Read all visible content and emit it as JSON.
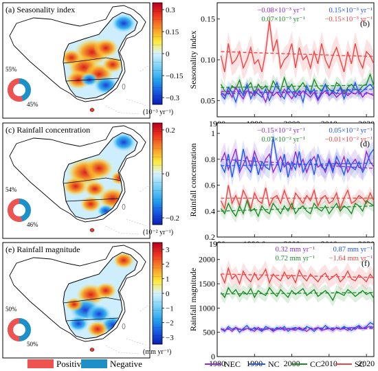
{
  "colors": {
    "NEC": "#8b2bd0",
    "NC": "#2255ee",
    "CC": "#1f8a2a",
    "SC": "#ee4444",
    "positive": "#ef5350",
    "negative": "#1e90c8"
  },
  "maps": [
    {
      "title": "(a) Seasonality index",
      "colorbar_ticks": [
        "0.3",
        "0.15",
        "0",
        "−0.15",
        "−0.3"
      ],
      "unit": "(10⁻³ yr⁻¹)",
      "donut": {
        "positive_pct": 55,
        "negative_pct": 45,
        "positive_label": "55%",
        "negative_label": "45%"
      }
    },
    {
      "title": "(c) Rainfall concentration",
      "colorbar_ticks": [
        "0.2",
        "0",
        "−0.2"
      ],
      "unit": "(10⁻² yr⁻¹)",
      "donut": {
        "positive_pct": 54,
        "negative_pct": 46,
        "positive_label": "54%",
        "negative_label": "46%"
      }
    },
    {
      "title": "(e) Rainfall magnitude",
      "colorbar_ticks": [
        "3",
        "2",
        "1",
        "0",
        "−1",
        "−2",
        "−3"
      ],
      "unit": "(mm yr⁻¹)",
      "donut": {
        "positive_pct": 50,
        "negative_pct": 50,
        "positive_label": "50%",
        "negative_label": "50%"
      }
    }
  ],
  "legend_map": {
    "positive": "Positive",
    "negative": "Negative"
  },
  "legend_lines": [
    "NEC",
    "NC",
    "CC",
    "SC"
  ],
  "chart_data": [
    {
      "type": "line",
      "panel": "(b)",
      "ylabel": "Seasonality index",
      "xlim": [
        1980,
        2022
      ],
      "ylim": [
        0.03,
        0.17
      ],
      "x_ticks": [
        "1980",
        "1990",
        "2000",
        "2010",
        "2020"
      ],
      "y_ticks": [
        "0.05",
        "0.10",
        "0.15"
      ],
      "trend_labels": [
        {
          "text": "−0.08×10⁻³ yr⁻¹",
          "color": "NEC"
        },
        {
          "text": "0.15×10⁻³ yr⁻¹",
          "color": "NC"
        },
        {
          "text": "0.07×10⁻³ yr⁻¹",
          "color": "CC"
        },
        {
          "text": "−0.15×10⁻³ yr⁻¹",
          "color": "SC"
        }
      ],
      "x": [
        1981,
        1982,
        1983,
        1984,
        1985,
        1986,
        1987,
        1988,
        1989,
        1990,
        1991,
        1992,
        1993,
        1994,
        1995,
        1996,
        1997,
        1998,
        1999,
        2000,
        2001,
        2002,
        2003,
        2004,
        2005,
        2006,
        2007,
        2008,
        2009,
        2010,
        2011,
        2012,
        2013,
        2014,
        2015,
        2016,
        2017,
        2018,
        2019,
        2020,
        2021,
        2022
      ],
      "series": [
        {
          "name": "SC",
          "values": [
            0.105,
            0.085,
            0.12,
            0.095,
            0.1,
            0.11,
            0.09,
            0.1,
            0.115,
            0.095,
            0.1,
            0.085,
            0.11,
            0.148,
            0.11,
            0.125,
            0.09,
            0.1,
            0.105,
            0.12,
            0.09,
            0.115,
            0.1,
            0.105,
            0.09,
            0.11,
            0.095,
            0.12,
            0.1,
            0.09,
            0.105,
            0.115,
            0.1,
            0.085,
            0.11,
            0.095,
            0.12,
            0.1,
            0.09,
            0.11,
            0.105,
            0.095
          ],
          "trend": [
            0.11,
            0.104
          ],
          "band": 0.015
        },
        {
          "name": "CC",
          "values": [
            0.07,
            0.062,
            0.058,
            0.068,
            0.064,
            0.075,
            0.06,
            0.066,
            0.072,
            0.058,
            0.07,
            0.064,
            0.068,
            0.06,
            0.074,
            0.066,
            0.062,
            0.078,
            0.064,
            0.07,
            0.06,
            0.066,
            0.072,
            0.064,
            0.06,
            0.076,
            0.066,
            0.062,
            0.07,
            0.064,
            0.06,
            0.072,
            0.068,
            0.058,
            0.066,
            0.07,
            0.064,
            0.062,
            0.068,
            0.07,
            0.082,
            0.068
          ],
          "trend": [
            0.066,
            0.069
          ],
          "band": 0.008
        },
        {
          "name": "NC",
          "values": [
            0.058,
            0.052,
            0.066,
            0.06,
            0.048,
            0.064,
            0.056,
            0.07,
            0.052,
            0.062,
            0.058,
            0.054,
            0.064,
            0.05,
            0.06,
            0.072,
            0.058,
            0.052,
            0.066,
            0.06,
            0.054,
            0.062,
            0.048,
            0.068,
            0.058,
            0.064,
            0.052,
            0.06,
            0.07,
            0.056,
            0.062,
            0.058,
            0.066,
            0.052,
            0.064,
            0.06,
            0.072,
            0.058,
            0.062,
            0.066,
            0.07,
            0.064
          ],
          "trend": [
            0.058,
            0.064
          ],
          "band": 0.008
        },
        {
          "name": "NEC",
          "values": [
            0.06,
            0.056,
            0.062,
            0.054,
            0.066,
            0.058,
            0.052,
            0.062,
            0.06,
            0.056,
            0.064,
            0.058,
            0.048,
            0.062,
            0.056,
            0.06,
            0.054,
            0.064,
            0.058,
            0.052,
            0.06,
            0.056,
            0.062,
            0.058,
            0.054,
            0.06,
            0.05,
            0.058,
            0.062,
            0.056,
            0.06,
            0.054,
            0.058,
            0.062,
            0.056,
            0.06,
            0.058,
            0.062,
            0.054,
            0.06,
            0.058,
            0.056
          ],
          "trend": [
            0.061,
            0.058
          ],
          "band": 0.006
        }
      ]
    },
    {
      "type": "line",
      "panel": "(d)",
      "ylabel": "Rainfall concentration",
      "xlim": [
        1980,
        2022
      ],
      "ylim": [
        0.2,
        1.08
      ],
      "x_ticks": [
        "1980",
        "1990.0",
        "2000",
        "2010",
        "2020"
      ],
      "y_ticks": [
        "0.2",
        "0.4",
        "0.6",
        "0.8",
        "1"
      ],
      "trend_labels": [
        {
          "text": "−0.15×10⁻² yr⁻¹",
          "color": "NEC"
        },
        {
          "text": "0.05×10⁻² yr⁻¹",
          "color": "NC"
        },
        {
          "text": "0.07×10⁻² yr⁻¹",
          "color": "CC"
        },
        {
          "text": "−0.01×10⁻² yr⁻¹",
          "color": "SC"
        }
      ],
      "x": [
        1981,
        1982,
        1983,
        1984,
        1985,
        1986,
        1987,
        1988,
        1989,
        1990,
        1991,
        1992,
        1993,
        1994,
        1995,
        1996,
        1997,
        1998,
        1999,
        2000,
        2001,
        2002,
        2003,
        2004,
        2005,
        2006,
        2007,
        2008,
        2009,
        2010,
        2011,
        2012,
        2013,
        2014,
        2015,
        2016,
        2017,
        2018,
        2019,
        2020,
        2021,
        2022
      ],
      "series": [
        {
          "name": "NEC",
          "values": [
            0.78,
            0.85,
            0.72,
            0.8,
            0.88,
            0.7,
            0.76,
            0.82,
            0.74,
            0.86,
            0.78,
            0.72,
            0.8,
            0.84,
            0.7,
            0.76,
            0.82,
            0.74,
            0.78,
            0.72,
            0.86,
            0.74,
            0.8,
            0.7,
            0.78,
            0.82,
            0.74,
            0.76,
            0.7,
            0.8,
            0.72,
            0.78,
            0.74,
            0.82,
            0.7,
            0.76,
            0.8,
            0.74,
            0.72,
            0.86,
            0.78,
            0.74
          ],
          "trend": [
            0.8,
            0.73
          ],
          "band": 0.08
        },
        {
          "name": "NC",
          "values": [
            0.76,
            0.7,
            0.84,
            0.66,
            0.8,
            0.72,
            0.88,
            0.74,
            0.7,
            0.82,
            0.68,
            0.78,
            0.74,
            0.72,
            0.97,
            0.8,
            0.7,
            0.84,
            0.66,
            0.78,
            0.72,
            0.86,
            0.7,
            0.76,
            0.8,
            0.68,
            0.84,
            0.74,
            0.72,
            0.78,
            0.7,
            0.82,
            0.76,
            0.68,
            0.8,
            0.74,
            0.72,
            0.78,
            0.7,
            0.76,
            0.84,
            0.88
          ],
          "trend": [
            0.75,
            0.77
          ],
          "band": 0.07
        },
        {
          "name": "SC",
          "values": [
            0.48,
            0.42,
            0.6,
            0.46,
            0.52,
            0.44,
            0.56,
            0.5,
            0.42,
            0.54,
            0.48,
            0.46,
            0.58,
            0.44,
            0.5,
            0.52,
            0.46,
            0.56,
            0.48,
            0.42,
            0.54,
            0.5,
            0.46,
            0.52,
            0.48,
            0.56,
            0.44,
            0.5,
            0.52,
            0.46,
            0.48,
            0.54,
            0.42,
            0.5,
            0.56,
            0.46,
            0.48,
            0.52,
            0.5,
            0.46,
            0.54,
            0.48
          ],
          "trend": [
            0.5,
            0.5
          ],
          "band": 0.05
        },
        {
          "name": "CC",
          "values": [
            0.42,
            0.38,
            0.46,
            0.4,
            0.36,
            0.44,
            0.38,
            0.48,
            0.4,
            0.42,
            0.36,
            0.44,
            0.4,
            0.38,
            0.46,
            0.42,
            0.38,
            0.44,
            0.4,
            0.46,
            0.38,
            0.42,
            0.44,
            0.4,
            0.38,
            0.46,
            0.42,
            0.4,
            0.44,
            0.38,
            0.42,
            0.46,
            0.4,
            0.44,
            0.42,
            0.38,
            0.46,
            0.44,
            0.4,
            0.48,
            0.46,
            0.44
          ],
          "trend": [
            0.4,
            0.44
          ],
          "band": 0.05
        }
      ]
    },
    {
      "type": "line",
      "panel": "(f)",
      "ylabel": "Rainfall magnitude",
      "xlim": [
        1980,
        2022
      ],
      "ylim": [
        0,
        2350
      ],
      "x_ticks": [
        "1980",
        "1990",
        "2000",
        "2010",
        "2020"
      ],
      "y_ticks": [
        "0",
        "500",
        "1000",
        "1500",
        "2000"
      ],
      "trend_labels": [
        {
          "text": "0.32 mm yr⁻¹",
          "color": "NEC"
        },
        {
          "text": "0.87 mm yr⁻¹",
          "color": "NC"
        },
        {
          "text": "0.72 mm yr⁻¹",
          "color": "CC"
        },
        {
          "text": "−1.64 mm yr⁻¹",
          "color": "SC"
        }
      ],
      "x": [
        1981,
        1982,
        1983,
        1984,
        1985,
        1986,
        1987,
        1988,
        1989,
        1990,
        1991,
        1992,
        1993,
        1994,
        1995,
        1996,
        1997,
        1998,
        1999,
        2000,
        2001,
        2002,
        2003,
        2004,
        2005,
        2006,
        2007,
        2008,
        2009,
        2010,
        2011,
        2012,
        2013,
        2014,
        2015,
        2016,
        2017,
        2018,
        2019,
        2020,
        2021,
        2022
      ],
      "series": [
        {
          "name": "SC",
          "values": [
            1700,
            1520,
            1820,
            1600,
            1680,
            1500,
            1760,
            1620,
            1540,
            1720,
            1580,
            1660,
            1800,
            1520,
            1700,
            1620,
            1560,
            1740,
            1600,
            1680,
            1520,
            1780,
            1640,
            1560,
            1700,
            1620,
            1540,
            1660,
            1720,
            1580,
            1640,
            1700,
            1540,
            1620,
            1760,
            1600,
            1560,
            1680,
            1620,
            1540,
            1700,
            1600
          ],
          "trend": [
            1700,
            1630
          ],
          "band": 180
        },
        {
          "name": "CC",
          "values": [
            1320,
            1220,
            1420,
            1300,
            1380,
            1240,
            1340,
            1280,
            1400,
            1220,
            1360,
            1300,
            1260,
            1420,
            1320,
            1240,
            1380,
            1300,
            1220,
            1360,
            1280,
            1340,
            1400,
            1260,
            1320,
            1380,
            1240,
            1300,
            1360,
            1280,
            1160,
            1340,
            1300,
            1260,
            1380,
            1320,
            1240,
            1300,
            1360,
            1280,
            1320,
            1200
          ],
          "trend": [
            1290,
            1320
          ],
          "band": 130
        },
        {
          "name": "NC",
          "values": [
            580,
            520,
            620,
            560,
            600,
            500,
            580,
            640,
            540,
            600,
            560,
            520,
            620,
            580,
            540,
            600,
            560,
            620,
            520,
            580,
            600,
            560,
            540,
            620,
            580,
            520,
            600,
            560,
            640,
            580,
            540,
            600,
            560,
            620,
            580,
            540,
            600,
            640,
            580,
            620,
            700,
            660
          ],
          "trend": [
            565,
            600
          ],
          "band": 60
        },
        {
          "name": "NEC",
          "values": [
            560,
            540,
            580,
            520,
            600,
            560,
            540,
            580,
            560,
            520,
            600,
            540,
            560,
            580,
            520,
            560,
            600,
            540,
            580,
            560,
            540,
            600,
            560,
            520,
            580,
            560,
            600,
            540,
            560,
            580,
            540,
            600,
            560,
            580,
            540,
            600,
            560,
            620,
            580,
            600,
            620,
            600
          ],
          "trend": [
            560,
            575
          ],
          "band": 50
        }
      ]
    }
  ]
}
